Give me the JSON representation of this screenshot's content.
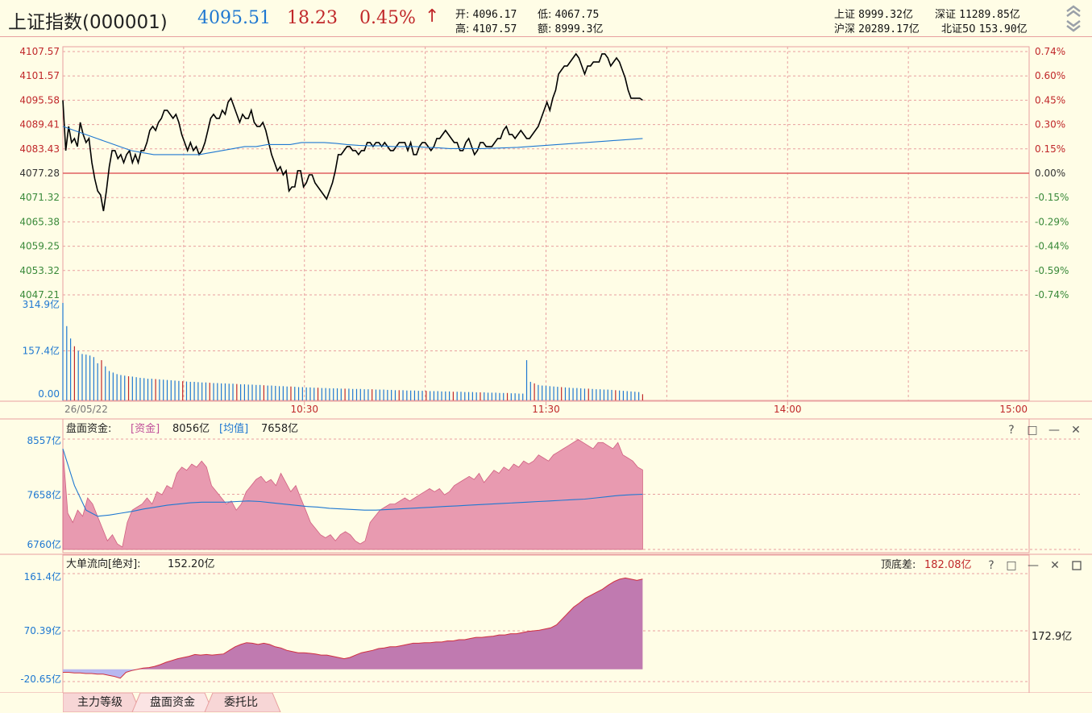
{
  "header": {
    "index_name": "上证指数(000001)",
    "price": "4095.51",
    "change": "18.23",
    "change_pct": "0.45%",
    "arrow": "↑",
    "open_label": "开:",
    "open": "4096.17",
    "low_label": "低:",
    "low": "4067.75",
    "high_label": "高:",
    "high": "4107.57",
    "amount_label": "额:",
    "amount": "8999.3亿",
    "sh_label": "上证",
    "sh": "8999.32亿",
    "sz_label": "深证",
    "sz": "11289.85亿",
    "hs_label": "沪深",
    "hs": "20289.17亿",
    "bz_label": "北证50",
    "bz": "153.90亿"
  },
  "colors": {
    "background": "#fffde6",
    "grid": "#e8a0a0",
    "price_line": "#000000",
    "avg_line": "#1f78d1",
    "up": "#c0282a",
    "down": "#3a8a3a",
    "fund_area": "#e89ab0",
    "bigorder_area": "#c07ab0",
    "negative_area": "#b8b8f0"
  },
  "chart_data": [
    {
      "type": "line",
      "id": "price",
      "x_ticks": [
        "26/05/22",
        "10:30",
        "11:30",
        "14:00",
        "15:00"
      ],
      "y_ticks_left": [
        "4107.57",
        "4101.57",
        "4095.58",
        "4089.41",
        "4083.43",
        "4077.28",
        "4071.32",
        "4065.38",
        "4059.25",
        "4053.32",
        "4047.21"
      ],
      "y_ticks_right": [
        "0.74%",
        "0.60%",
        "0.45%",
        "0.30%",
        "0.15%",
        "0.00%",
        "-0.15%",
        "-0.29%",
        "-0.44%",
        "-0.59%",
        "-0.74%"
      ],
      "ylim": [
        4047.21,
        4107.57
      ],
      "prev_close": 4077.28,
      "minutes_total": 240,
      "series": [
        {
          "values": [
            4095.5,
            4083,
            4089,
            4085,
            4086,
            4084,
            4090,
            4087,
            4085,
            4086,
            4080,
            4076,
            4073,
            4072,
            4068,
            4073,
            4079,
            4083,
            4083,
            4081,
            4082,
            4080,
            4082,
            4083,
            4080,
            4082,
            4080,
            4083,
            4083,
            4085,
            4088,
            4089,
            4088,
            4090,
            4091,
            4093,
            4093,
            4092,
            4091,
            4092,
            4090,
            4087,
            4085,
            4083,
            4085,
            4083,
            4084,
            4082,
            4083,
            4085,
            4088,
            4091,
            4092,
            4091,
            4091,
            4093,
            4092,
            4095,
            4096,
            4094,
            4092,
            4090,
            4092,
            4091,
            4091,
            4093,
            4090,
            4089,
            4089,
            4090,
            4088,
            4085,
            4082,
            4080,
            4078,
            4079,
            4077,
            4078,
            4073,
            4074,
            4074,
            4078,
            4078,
            4074,
            4075,
            4077,
            4077,
            4075,
            4074,
            4073,
            4072,
            4071,
            4073,
            4075,
            4078,
            4082,
            4082,
            4083,
            4084,
            4084,
            4083,
            4083,
            4082,
            4083,
            4083,
            4085,
            4085,
            4084,
            4085,
            4085,
            4084,
            4085,
            4084,
            4083,
            4083,
            4084,
            4085,
            4085,
            4085,
            4083,
            4085,
            4082,
            4082,
            4084,
            4085,
            4085,
            4084,
            4083,
            4084,
            4086,
            4086,
            4087,
            4088,
            4087,
            4086,
            4085,
            4085,
            4083,
            4083,
            4085,
            4086,
            4084,
            4082,
            4083,
            4085,
            4085,
            4084,
            4084,
            4084,
            4085,
            4086,
            4086,
            4088,
            4089,
            4087,
            4087,
            4086,
            4087,
            4088,
            4087,
            4086,
            4086,
            4087,
            4088,
            4089,
            4091,
            4093,
            4095,
            4093,
            4096,
            4098,
            4102,
            4103,
            4104,
            4104,
            4105,
            4106,
            4107,
            4106,
            4104,
            4102,
            4104,
            4104,
            4105,
            4105,
            4105,
            4107,
            4107,
            4106,
            4104,
            4105,
            4106,
            4105,
            4103,
            4101,
            4098,
            4096,
            4096,
            4096,
            4096,
            4095.5
          ]
        },
        {
          "values": [
            4089,
            4088,
            4087,
            4086,
            4085,
            4084,
            4083,
            4082.5,
            4082,
            4082,
            4082,
            4082,
            4082,
            4082.5,
            4083,
            4083.5,
            4084,
            4084,
            4084.5,
            4084.5,
            4084.5,
            4085,
            4085,
            4085,
            4084.8,
            4084.5,
            4084.3,
            4084.2,
            4084.2,
            4084,
            4084,
            4084,
            4083.8,
            4083.7,
            4083.5,
            4083.5,
            4083.5,
            4083.5,
            4083.6,
            4083.7,
            4083.8,
            4084,
            4084.2,
            4084.4,
            4084.6,
            4084.8,
            4085,
            4085.2,
            4085.4,
            4085.6,
            4085.8,
            4086
          ]
        }
      ]
    },
    {
      "type": "bar",
      "id": "volume",
      "y_ticks": [
        "314.9亿",
        "157.4亿",
        "0.00"
      ],
      "ylim": [
        0,
        314.9
      ],
      "values": [
        314.9,
        240,
        200,
        175,
        160,
        150,
        148,
        145,
        140,
        120,
        130,
        110,
        95,
        90,
        85,
        82,
        80,
        78,
        77,
        75,
        73,
        72,
        70,
        70,
        69,
        68,
        67,
        66,
        65,
        64,
        63,
        62,
        61,
        60,
        60,
        59,
        58,
        58,
        57,
        56,
        56,
        55,
        55,
        54,
        54,
        53,
        52,
        52,
        51,
        51,
        50,
        50,
        49,
        48,
        48,
        47,
        46,
        46,
        45,
        45,
        44,
        43,
        43,
        42,
        42,
        41,
        41,
        40,
        40,
        39,
        39,
        39,
        38,
        38,
        38,
        37,
        37,
        37,
        36,
        36,
        36,
        35,
        35,
        35,
        34,
        34,
        33,
        33,
        33,
        32,
        32,
        32,
        31,
        31,
        31,
        30,
        30,
        30,
        29,
        29,
        29,
        28,
        28,
        28,
        27,
        27,
        27,
        26,
        26,
        26,
        25,
        25,
        25,
        24,
        24,
        24,
        23,
        23,
        22,
        22,
        130,
        60,
        55,
        50,
        48,
        47,
        46,
        45,
        44,
        43,
        42,
        41,
        40,
        40,
        39,
        38,
        38,
        37,
        36,
        36,
        35,
        35,
        34,
        33,
        32,
        31,
        30,
        29,
        28,
        27,
        20
      ]
    },
    {
      "type": "area",
      "id": "fund",
      "title": "盘面资金:",
      "legend": [
        {
          "name": "[资金]",
          "value": "8056亿"
        },
        {
          "name": "[均值]",
          "value": "7658亿"
        }
      ],
      "y_ticks": [
        "8557亿",
        "7658亿",
        "6760亿"
      ],
      "ylim": [
        6760,
        8557
      ],
      "series": [
        {
          "name": "[资金]",
          "values": [
            8400,
            7350,
            7200,
            7400,
            7300,
            7600,
            7500,
            7300,
            7100,
            6900,
            7000,
            6850,
            6800,
            7200,
            7400,
            7450,
            7500,
            7600,
            7500,
            7700,
            7650,
            7800,
            7750,
            8000,
            8100,
            8050,
            8150,
            8100,
            8200,
            8100,
            7800,
            7700,
            7600,
            7500,
            7550,
            7400,
            7500,
            7700,
            7800,
            7900,
            7950,
            7850,
            7900,
            7800,
            8000,
            7850,
            7700,
            7800,
            7600,
            7400,
            7200,
            7100,
            7000,
            6950,
            7000,
            6900,
            7000,
            7050,
            7000,
            6900,
            6850,
            6900,
            7200,
            7300,
            7400,
            7450,
            7500,
            7500,
            7550,
            7600,
            7550,
            7600,
            7650,
            7700,
            7750,
            7700,
            7750,
            7650,
            7700,
            7800,
            7850,
            7900,
            7950,
            7900,
            8000,
            7850,
            7950,
            8050,
            8000,
            8100,
            8050,
            8150,
            8100,
            8200,
            8150,
            8200,
            8300,
            8250,
            8200,
            8300,
            8350,
            8400,
            8450,
            8500,
            8550,
            8500,
            8450,
            8400,
            8500,
            8500,
            8450,
            8400,
            8500,
            8300,
            8250,
            8200,
            8100,
            8056
          ]
        },
        {
          "name": "[均值]",
          "values": [
            8400,
            7800,
            7400,
            7300,
            7320,
            7350,
            7380,
            7420,
            7450,
            7480,
            7500,
            7520,
            7530,
            7530,
            7530,
            7540,
            7550,
            7540,
            7520,
            7500,
            7480,
            7460,
            7450,
            7430,
            7420,
            7410,
            7400,
            7400,
            7410,
            7420,
            7430,
            7440,
            7450,
            7460,
            7470,
            7480,
            7490,
            7500,
            7510,
            7520,
            7530,
            7540,
            7550,
            7560,
            7570,
            7580,
            7600,
            7620,
            7640,
            7650,
            7658
          ]
        }
      ]
    },
    {
      "type": "area",
      "id": "bigorder",
      "title": "大单流向[绝对]:",
      "title_value": "152.20亿",
      "spread_label": "顶底差:",
      "spread_value": "182.08亿",
      "y_ticks": [
        "161.4亿",
        "70.39亿",
        "-20.65亿"
      ],
      "right_label": "172.9亿",
      "ylim": [
        -20.65,
        161.4
      ],
      "values": [
        -5,
        -5,
        -6,
        -6,
        -7,
        -7,
        -8,
        -8,
        -10,
        -12,
        -15,
        -5,
        -2,
        0,
        2,
        3,
        5,
        8,
        12,
        15,
        18,
        20,
        22,
        25,
        24,
        25,
        24,
        25,
        26,
        32,
        38,
        42,
        45,
        44,
        42,
        44,
        42,
        38,
        36,
        32,
        30,
        28,
        28,
        27,
        26,
        24,
        24,
        22,
        20,
        18,
        20,
        24,
        28,
        30,
        32,
        35,
        36,
        38,
        38,
        40,
        42,
        44,
        44,
        45,
        45,
        46,
        46,
        48,
        48,
        50,
        50,
        52,
        54,
        54,
        55,
        56,
        58,
        58,
        60,
        60,
        62,
        64,
        65,
        66,
        68,
        70,
        75,
        85,
        95,
        105,
        112,
        120,
        125,
        130,
        135,
        142,
        148,
        152,
        154,
        152,
        150,
        152.2
      ]
    }
  ],
  "tabs": [
    "主力等级",
    "盘面资金",
    "委托比"
  ],
  "panel_icons": [
    "?",
    "□",
    "—",
    "✕"
  ]
}
